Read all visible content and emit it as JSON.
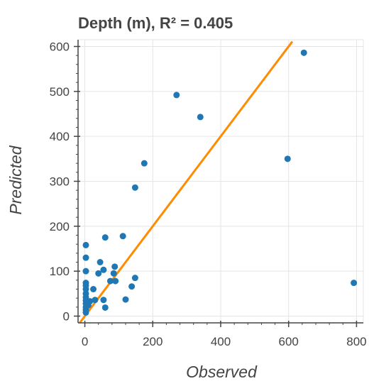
{
  "chart_data": {
    "type": "scatter",
    "title": "Depth (m), R² = 0.405",
    "xlabel": "Observed",
    "ylabel": "Predicted",
    "xlim": [
      -20,
      820
    ],
    "ylim": [
      -15,
      615
    ],
    "xticks": [
      0,
      200,
      400,
      600,
      800
    ],
    "yticks": [
      0,
      100,
      200,
      300,
      400,
      500,
      600
    ],
    "grid": true,
    "point_color": "#1f77b4",
    "line_color": "#ff8c00",
    "reference_line": {
      "type": "identity",
      "from": [
        -15,
        -15
      ],
      "to": [
        611,
        611
      ]
    },
    "points": [
      {
        "x": 3,
        "y": 158
      },
      {
        "x": 3,
        "y": 130
      },
      {
        "x": 3,
        "y": 100
      },
      {
        "x": 3,
        "y": 74
      },
      {
        "x": 3,
        "y": 68
      },
      {
        "x": 3,
        "y": 60
      },
      {
        "x": 3,
        "y": 50
      },
      {
        "x": 3,
        "y": 42
      },
      {
        "x": 3,
        "y": 35
      },
      {
        "x": 3,
        "y": 28
      },
      {
        "x": 3,
        "y": 20
      },
      {
        "x": 3,
        "y": 14
      },
      {
        "x": 3,
        "y": 8
      },
      {
        "x": 10,
        "y": 24
      },
      {
        "x": 15,
        "y": 33
      },
      {
        "x": 30,
        "y": 36
      },
      {
        "x": 25,
        "y": 60
      },
      {
        "x": 40,
        "y": 95
      },
      {
        "x": 45,
        "y": 120
      },
      {
        "x": 55,
        "y": 103
      },
      {
        "x": 55,
        "y": 36
      },
      {
        "x": 60,
        "y": 19
      },
      {
        "x": 60,
        "y": 175
      },
      {
        "x": 75,
        "y": 78
      },
      {
        "x": 85,
        "y": 95
      },
      {
        "x": 88,
        "y": 110
      },
      {
        "x": 90,
        "y": 78
      },
      {
        "x": 112,
        "y": 178
      },
      {
        "x": 120,
        "y": 37
      },
      {
        "x": 138,
        "y": 66
      },
      {
        "x": 148,
        "y": 85
      },
      {
        "x": 148,
        "y": 286
      },
      {
        "x": 175,
        "y": 340
      },
      {
        "x": 270,
        "y": 492
      },
      {
        "x": 340,
        "y": 443
      },
      {
        "x": 597,
        "y": 350
      },
      {
        "x": 645,
        "y": 586
      },
      {
        "x": 792,
        "y": 74
      }
    ]
  }
}
